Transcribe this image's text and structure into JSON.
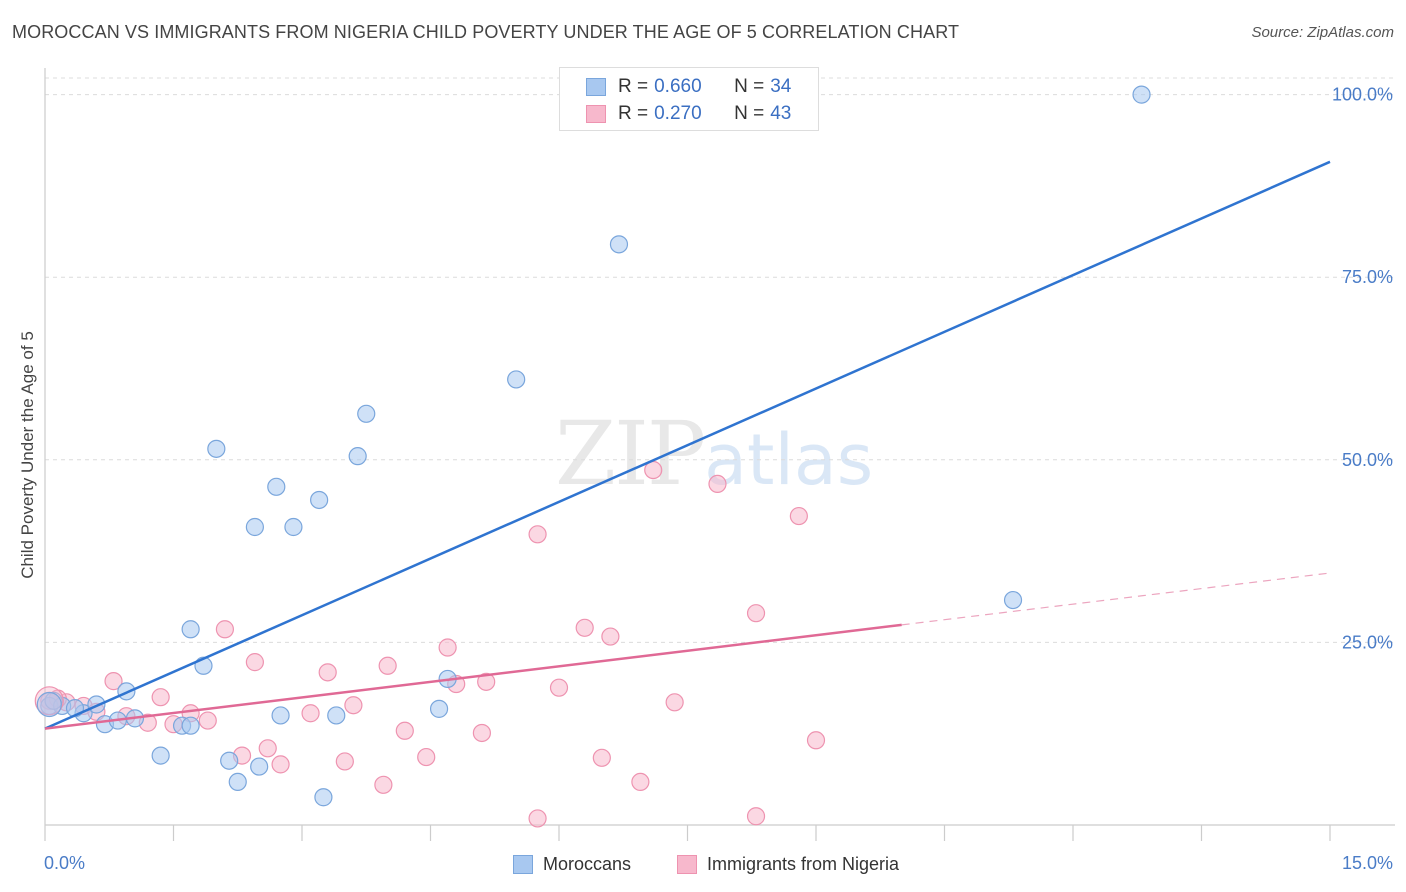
{
  "header": {
    "title": "MOROCCAN VS IMMIGRANTS FROM NIGERIA CHILD POVERTY UNDER THE AGE OF 5 CORRELATION CHART",
    "source": "Source: ZipAtlas.com"
  },
  "watermark": {
    "zip": "ZIP",
    "atlas": "atlas"
  },
  "legend": {
    "rows": [
      {
        "r_label": "R =",
        "r_value": "0.660",
        "n_label": "N =",
        "n_value": "34",
        "color": "#a8c8f0"
      },
      {
        "r_label": "R =",
        "r_value": "0.270",
        "n_label": "N =",
        "n_value": "43",
        "color": "#f7b8cc"
      }
    ]
  },
  "bottom_legend": {
    "series1": "Moroccans",
    "series2": "Immigrants from Nigeria"
  },
  "chart_data": {
    "type": "scatter",
    "title": "MOROCCAN VS IMMIGRANTS FROM NIGERIA CHILD POVERTY UNDER THE AGE OF 5 CORRELATION CHART",
    "xlabel": "",
    "ylabel": "Child Poverty Under the Age of 5",
    "xlim": [
      0,
      15
    ],
    "ylim": [
      0,
      102
    ],
    "x_tick_labels": [
      "0.0%",
      "15.0%"
    ],
    "y_ticks": [
      25,
      50,
      75,
      100
    ],
    "y_tick_labels": [
      "25.0%",
      "50.0%",
      "75.0%",
      "100.0%"
    ],
    "grid": true,
    "legend_placement": "top-center",
    "series": [
      {
        "name": "Moroccans",
        "color": "#a8c8f0",
        "stroke": "#7aa6dc",
        "line_color": "#2f74d0",
        "trend": {
          "x": [
            0,
            15
          ],
          "y": [
            13.2,
            90.8
          ],
          "dashed_from": null
        },
        "points": [
          {
            "x": 0.05,
            "y": 16.3
          },
          {
            "x": 0.2,
            "y": 16.3
          },
          {
            "x": 0.45,
            "y": 15.3
          },
          {
            "x": 0.6,
            "y": 16.5
          },
          {
            "x": 0.7,
            "y": 13.8
          },
          {
            "x": 0.85,
            "y": 14.3
          },
          {
            "x": 0.95,
            "y": 18.3
          },
          {
            "x": 1.05,
            "y": 14.6
          },
          {
            "x": 1.35,
            "y": 9.5
          },
          {
            "x": 1.6,
            "y": 13.6
          },
          {
            "x": 1.7,
            "y": 13.6
          },
          {
            "x": 1.7,
            "y": 26.8
          },
          {
            "x": 1.85,
            "y": 21.8
          },
          {
            "x": 2.0,
            "y": 51.5
          },
          {
            "x": 2.15,
            "y": 8.8
          },
          {
            "x": 2.25,
            "y": 5.9
          },
          {
            "x": 2.45,
            "y": 40.8
          },
          {
            "x": 2.5,
            "y": 8.0
          },
          {
            "x": 2.7,
            "y": 46.3
          },
          {
            "x": 2.75,
            "y": 15.0
          },
          {
            "x": 2.9,
            "y": 40.8
          },
          {
            "x": 3.2,
            "y": 44.5
          },
          {
            "x": 3.25,
            "y": 3.8
          },
          {
            "x": 3.4,
            "y": 15.0
          },
          {
            "x": 3.65,
            "y": 50.5
          },
          {
            "x": 3.75,
            "y": 56.3
          },
          {
            "x": 4.6,
            "y": 15.9
          },
          {
            "x": 4.7,
            "y": 20.0
          },
          {
            "x": 5.5,
            "y": 61.0
          },
          {
            "x": 6.7,
            "y": 79.5
          },
          {
            "x": 11.3,
            "y": 30.8
          },
          {
            "x": 12.8,
            "y": 100.0
          },
          {
            "x": 0.1,
            "y": 17.0
          },
          {
            "x": 0.35,
            "y": 16.0
          }
        ]
      },
      {
        "name": "Immigrants from Nigeria",
        "color": "#f7b8cc",
        "stroke": "#ee93b0",
        "line_color": "#e06995",
        "trend": {
          "x": [
            0,
            15
          ],
          "y": [
            13.2,
            34.5
          ],
          "dashed_from": 10.0
        },
        "points": [
          {
            "x": 0.05,
            "y": 17.0
          },
          {
            "x": 0.25,
            "y": 16.8
          },
          {
            "x": 0.45,
            "y": 16.3
          },
          {
            "x": 0.6,
            "y": 15.5
          },
          {
            "x": 0.8,
            "y": 19.7
          },
          {
            "x": 0.95,
            "y": 14.9
          },
          {
            "x": 1.2,
            "y": 14.0
          },
          {
            "x": 1.35,
            "y": 17.5
          },
          {
            "x": 1.5,
            "y": 13.8
          },
          {
            "x": 1.7,
            "y": 15.3
          },
          {
            "x": 1.9,
            "y": 14.3
          },
          {
            "x": 2.1,
            "y": 26.8
          },
          {
            "x": 2.3,
            "y": 9.5
          },
          {
            "x": 2.45,
            "y": 22.3
          },
          {
            "x": 2.6,
            "y": 10.5
          },
          {
            "x": 2.75,
            "y": 8.3
          },
          {
            "x": 3.1,
            "y": 15.3
          },
          {
            "x": 3.3,
            "y": 20.9
          },
          {
            "x": 3.5,
            "y": 8.7
          },
          {
            "x": 3.6,
            "y": 16.4
          },
          {
            "x": 3.95,
            "y": 5.5
          },
          {
            "x": 4.0,
            "y": 21.8
          },
          {
            "x": 4.2,
            "y": 12.9
          },
          {
            "x": 4.45,
            "y": 9.3
          },
          {
            "x": 4.7,
            "y": 24.3
          },
          {
            "x": 4.8,
            "y": 19.3
          },
          {
            "x": 5.1,
            "y": 12.6
          },
          {
            "x": 5.15,
            "y": 19.6
          },
          {
            "x": 5.75,
            "y": 39.8
          },
          {
            "x": 5.75,
            "y": 0.9
          },
          {
            "x": 6.0,
            "y": 18.8
          },
          {
            "x": 6.3,
            "y": 27.0
          },
          {
            "x": 6.5,
            "y": 9.2
          },
          {
            "x": 6.6,
            "y": 25.8
          },
          {
            "x": 6.95,
            "y": 5.9
          },
          {
            "x": 7.1,
            "y": 48.6
          },
          {
            "x": 7.35,
            "y": 16.8
          },
          {
            "x": 7.85,
            "y": 46.7
          },
          {
            "x": 8.3,
            "y": 29.0
          },
          {
            "x": 8.3,
            "y": 1.2
          },
          {
            "x": 8.8,
            "y": 42.3
          },
          {
            "x": 9.0,
            "y": 11.6
          },
          {
            "x": 0.15,
            "y": 17.3
          }
        ]
      }
    ]
  }
}
